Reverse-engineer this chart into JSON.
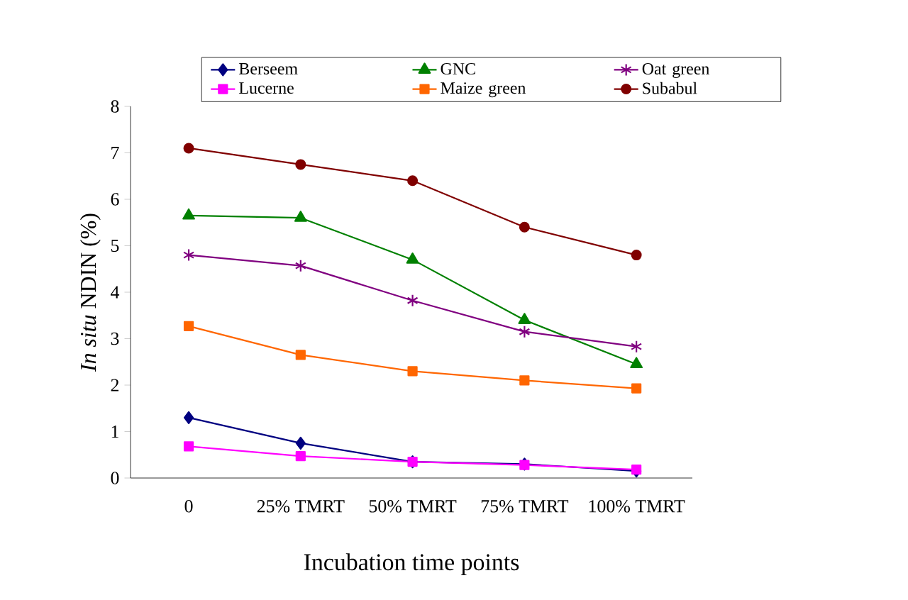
{
  "chart_data": {
    "type": "line",
    "xlabel": "Incubation time points",
    "ylabel": "*In situ* NDIN (%)",
    "categories": [
      "0",
      "25% TMRT",
      "50% TMRT",
      "75% TMRT",
      "100% TMRT"
    ],
    "ylim": [
      0,
      8
    ],
    "yticks": [
      0,
      1,
      2,
      3,
      4,
      5,
      6,
      7,
      8
    ],
    "grid": false,
    "legend": "top",
    "line_style": "solid",
    "series": [
      {
        "name": "Berseem",
        "color": "#000080",
        "marker": "diamond",
        "values": [
          1.3,
          0.75,
          0.35,
          0.3,
          0.15
        ]
      },
      {
        "name": "GNC",
        "color": "#008000",
        "marker": "triangle",
        "values": [
          5.65,
          5.6,
          4.7,
          3.4,
          2.45
        ]
      },
      {
        "name": "Oat green",
        "color": "#800080",
        "marker": "cross",
        "values": [
          4.8,
          4.57,
          3.82,
          3.15,
          2.83
        ]
      },
      {
        "name": "Lucerne",
        "color": "#ff00ff",
        "marker": "square",
        "values": [
          0.68,
          0.47,
          0.35,
          0.28,
          0.18
        ]
      },
      {
        "name": "Maize green",
        "color": "#ff6600",
        "marker": "square",
        "values": [
          3.27,
          2.65,
          2.3,
          2.1,
          1.93
        ]
      },
      {
        "name": "Subabul",
        "color": "#800000",
        "marker": "circle",
        "values": [
          7.1,
          6.75,
          6.4,
          5.4,
          4.8
        ]
      }
    ]
  }
}
